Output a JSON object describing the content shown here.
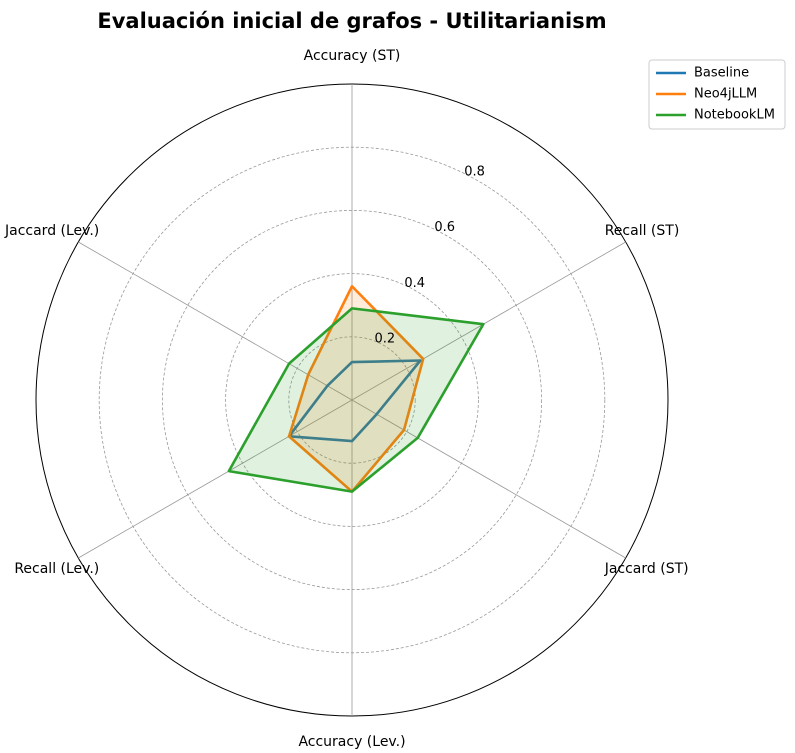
{
  "chart_data": {
    "type": "radar",
    "title": "Evaluación inicial de grafos - Utilitarianism",
    "axes": [
      "Accuracy (ST)",
      "Recall (ST)",
      "Jaccard (ST)",
      "Accuracy (Lev.)",
      "Recall (Lev.)",
      "Jaccard (Lev.)"
    ],
    "rlim": [
      0,
      1.0
    ],
    "r_ticks": [
      0.2,
      0.4,
      0.6,
      0.8
    ],
    "r_tick_labels": [
      "0.2",
      "0.4",
      "0.6",
      "0.8"
    ],
    "grid": true,
    "legend_position": "top-right",
    "series": [
      {
        "name": "Baseline",
        "color": "#1f77b4",
        "values": [
          0.12,
          0.25,
          0.09,
          0.13,
          0.23,
          0.09
        ],
        "fill": false
      },
      {
        "name": "Neo4jLLM",
        "color": "#ff7f0e",
        "values": [
          0.36,
          0.26,
          0.19,
          0.29,
          0.23,
          0.16
        ],
        "fill": true
      },
      {
        "name": "NotebookLM",
        "color": "#2ca02c",
        "values": [
          0.29,
          0.48,
          0.24,
          0.29,
          0.45,
          0.23
        ],
        "fill": true
      }
    ]
  }
}
